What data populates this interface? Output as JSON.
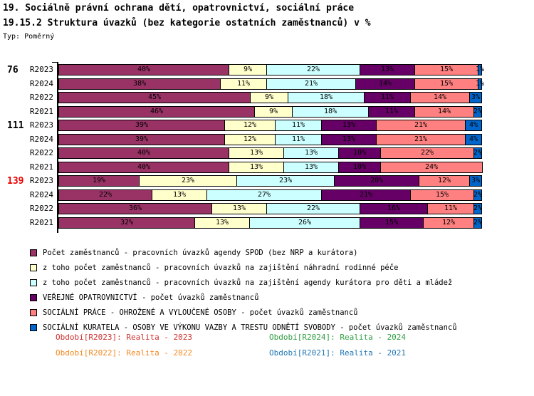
{
  "header": {
    "title1": "19. Sociálně právní ochrana dětí, opatrovnictví, sociální práce",
    "title2": "19.15.2 Struktura úvazků (bez kategorie ostatních zaměstnanců) v %",
    "type_label": "Typ: Poměrný"
  },
  "chart_data": {
    "type": "bar",
    "orientation": "horizontal",
    "stacked": true,
    "unit": "%",
    "xlim": [
      0,
      100
    ],
    "series": [
      {
        "name": "Počet zaměstnanců - pracovních úvazků agendy SPOD (bez NRP a kurátora)",
        "color": "#993366"
      },
      {
        "name": "z toho počet zaměstnanců - pracovních úvazků na zajištění náhradní rodinné péče",
        "color": "#FFFFCC"
      },
      {
        "name": "z toho počet zaměstnanců - pracovních úvazků na zajištění agendy kurátora pro děti a mládež",
        "color": "#CCFFFF"
      },
      {
        "name": "VEŘEJNÉ OPATROVNICTVÍ - počet úvazků zaměstnanců",
        "color": "#660066"
      },
      {
        "name": "SOCIÁLNÍ PRÁCE - OHROŽENÉ A VYLOUČENÉ OSOBY - počet úvazků zaměstnanců",
        "color": "#FF8080"
      },
      {
        "name": "SOCIÁLNÍ KURATELA - OSOBY VE VÝKONU VAZBY A TRESTU ODNĚTÍ SVOBODY - počet úvazků zaměstnanců",
        "color": "#0066CC"
      }
    ],
    "groups": [
      {
        "label": "76",
        "label_color": "#000000",
        "rows": [
          {
            "label": "R2023",
            "values": [
              40,
              9,
              22,
              13,
              15,
              1
            ]
          },
          {
            "label": "R2024",
            "values": [
              38,
              11,
              21,
              14,
              15,
              1
            ]
          },
          {
            "label": "R2022",
            "values": [
              45,
              9,
              18,
              11,
              14,
              3
            ]
          },
          {
            "label": "R2021",
            "values": [
              46,
              9,
              18,
              11,
              14,
              2
            ]
          }
        ]
      },
      {
        "label": "111",
        "label_color": "#000000",
        "rows": [
          {
            "label": "R2023",
            "values": [
              39,
              12,
              11,
              13,
              21,
              4
            ]
          },
          {
            "label": "R2024",
            "values": [
              39,
              12,
              11,
              13,
              21,
              4
            ]
          },
          {
            "label": "R2022",
            "values": [
              40,
              13,
              13,
              10,
              22,
              2
            ]
          },
          {
            "label": "R2021",
            "values": [
              40,
              13,
              13,
              10,
              24,
              0
            ]
          }
        ]
      },
      {
        "label": "139",
        "label_color": "#EE0000",
        "rows": [
          {
            "label": "R2023",
            "values": [
              19,
              23,
              23,
              20,
              12,
              3
            ]
          },
          {
            "label": "R2024",
            "values": [
              22,
              13,
              27,
              21,
              15,
              2
            ]
          },
          {
            "label": "R2022",
            "values": [
              36,
              13,
              22,
              16,
              11,
              2
            ]
          },
          {
            "label": "R2021",
            "values": [
              32,
              13,
              26,
              15,
              12,
              2
            ]
          }
        ]
      }
    ]
  },
  "periods": [
    {
      "label": "Období[R2023]: Realita - 2023",
      "color": "#D03030"
    },
    {
      "label": "Období[R2024]: Realita - 2024",
      "color": "#2F9E41"
    },
    {
      "label": "Období[R2022]: Realita - 2022",
      "color": "#F18A22"
    },
    {
      "label": "Období[R2021]: Realita - 2021",
      "color": "#2277B4"
    }
  ]
}
